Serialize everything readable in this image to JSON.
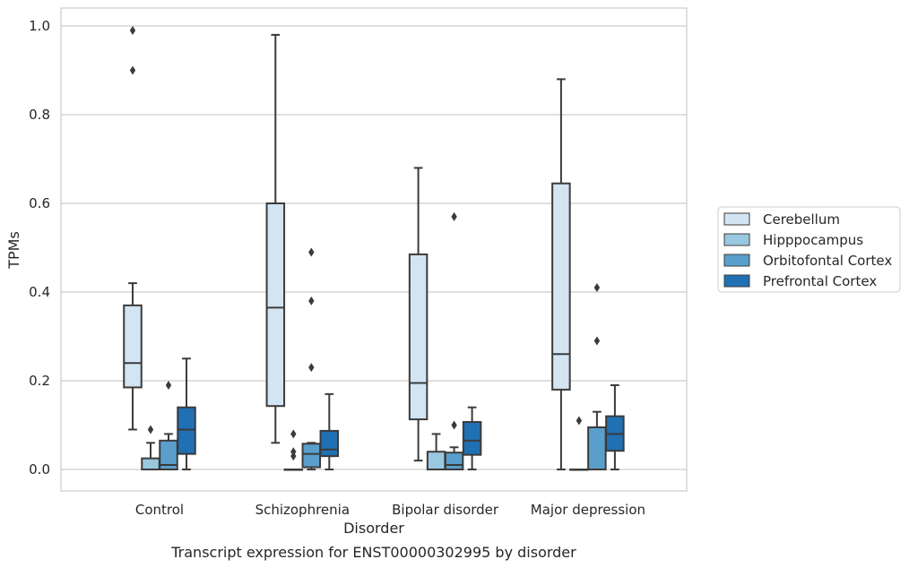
{
  "chart_data": {
    "type": "box",
    "caption": "Transcript expression for ENST00000302995 by disorder",
    "xlabel": "Disorder",
    "ylabel": "TPMs",
    "ylim": [
      -0.05,
      1.04
    ],
    "yticks": [
      "0.0",
      "0.2",
      "0.4",
      "0.6",
      "0.8",
      "1.0"
    ],
    "grid": true,
    "legend_position": "right",
    "categories": [
      "Control",
      "Schizophrenia",
      "Bipolar disorder",
      "Major depression"
    ],
    "series": [
      {
        "name": "Cerebellum",
        "color": "#d3e4f3",
        "boxes": [
          {
            "whisker_low": 0.09,
            "q1": 0.185,
            "median": 0.24,
            "q3": 0.37,
            "whisker_high": 0.42,
            "outliers": [
              0.9,
              0.99
            ]
          },
          {
            "whisker_low": 0.06,
            "q1": 0.143,
            "median": 0.365,
            "q3": 0.6,
            "whisker_high": 0.98,
            "outliers": []
          },
          {
            "whisker_low": 0.02,
            "q1": 0.113,
            "median": 0.195,
            "q3": 0.485,
            "whisker_high": 0.68,
            "outliers": []
          },
          {
            "whisker_low": 0.0,
            "q1": 0.18,
            "median": 0.26,
            "q3": 0.645,
            "whisker_high": 0.88,
            "outliers": []
          }
        ]
      },
      {
        "name": "Hipppocampus",
        "color": "#9ac8e0",
        "boxes": [
          {
            "whisker_low": 0.0,
            "q1": 0.0,
            "median": 0.0,
            "q3": 0.025,
            "whisker_high": 0.06,
            "outliers": [
              0.09
            ]
          },
          {
            "whisker_low": 0.0,
            "q1": 0.0,
            "median": 0.0,
            "q3": 0.0,
            "whisker_high": 0.0,
            "outliers": [
              0.03,
              0.04,
              0.08
            ]
          },
          {
            "whisker_low": 0.0,
            "q1": 0.0,
            "median": 0.0,
            "q3": 0.04,
            "whisker_high": 0.08,
            "outliers": []
          },
          {
            "whisker_low": 0.0,
            "q1": 0.0,
            "median": 0.0,
            "q3": 0.0,
            "whisker_high": 0.0,
            "outliers": [
              0.11
            ]
          }
        ]
      },
      {
        "name": "Orbitofontal Cortex",
        "color": "#5a9fcc",
        "boxes": [
          {
            "whisker_low": 0.0,
            "q1": 0.0,
            "median": 0.01,
            "q3": 0.065,
            "whisker_high": 0.08,
            "outliers": [
              0.19
            ]
          },
          {
            "whisker_low": 0.0,
            "q1": 0.005,
            "median": 0.035,
            "q3": 0.058,
            "whisker_high": 0.06,
            "outliers": [
              0.23,
              0.38,
              0.49
            ]
          },
          {
            "whisker_low": 0.0,
            "q1": 0.0,
            "median": 0.01,
            "q3": 0.038,
            "whisker_high": 0.05,
            "outliers": [
              0.1,
              0.57
            ]
          },
          {
            "whisker_low": 0.0,
            "q1": 0.0,
            "median": 0.0,
            "q3": 0.095,
            "whisker_high": 0.13,
            "outliers": [
              0.29,
              0.41
            ]
          }
        ]
      },
      {
        "name": "Prefrontal Cortex",
        "color": "#2070b4",
        "boxes": [
          {
            "whisker_low": 0.0,
            "q1": 0.035,
            "median": 0.09,
            "q3": 0.14,
            "whisker_high": 0.25,
            "outliers": []
          },
          {
            "whisker_low": 0.0,
            "q1": 0.03,
            "median": 0.045,
            "q3": 0.087,
            "whisker_high": 0.17,
            "outliers": []
          },
          {
            "whisker_low": 0.0,
            "q1": 0.033,
            "median": 0.065,
            "q3": 0.107,
            "whisker_high": 0.14,
            "outliers": []
          },
          {
            "whisker_low": 0.0,
            "q1": 0.042,
            "median": 0.08,
            "q3": 0.12,
            "whisker_high": 0.19,
            "outliers": []
          }
        ]
      }
    ]
  }
}
